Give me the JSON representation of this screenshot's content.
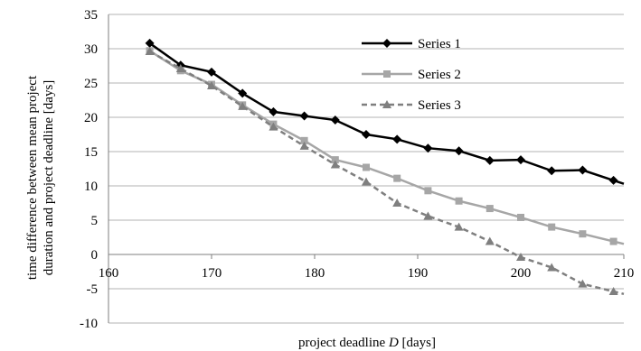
{
  "chart_data": {
    "type": "line",
    "title": "",
    "xlabel_prefix": "project deadline ",
    "xlabel_var": "D",
    "xlabel_suffix": " [days]",
    "ylabel_line1": "time difference between mean project",
    "ylabel_line2": "duration and project deadline [days]",
    "xlim": [
      160,
      210
    ],
    "ylim": [
      -10,
      35
    ],
    "x_ticks": [
      160,
      170,
      180,
      190,
      200,
      210
    ],
    "y_ticks": [
      -10,
      -5,
      0,
      5,
      10,
      15,
      20,
      25,
      30,
      35
    ],
    "grid": "horizontal",
    "legend_position": "top-right",
    "x": [
      164,
      167,
      170,
      173,
      176,
      179,
      182,
      185,
      188,
      191,
      194,
      197,
      200,
      203,
      206,
      209
    ],
    "series": [
      {
        "name": "Series 1",
        "color": "#000000",
        "marker": "diamond",
        "dash": "solid",
        "values": [
          30.8,
          27.6,
          26.6,
          23.5,
          20.8,
          20.2,
          19.6,
          17.5,
          16.8,
          15.5,
          15.1,
          13.7,
          13.8,
          12.2,
          12.3,
          10.8
        ]
      },
      {
        "name": "Series 2",
        "color": "#a6a6a6",
        "marker": "square",
        "dash": "solid",
        "values": [
          29.7,
          26.8,
          24.8,
          21.8,
          19.0,
          16.6,
          13.8,
          12.7,
          11.1,
          9.3,
          7.8,
          6.7,
          5.4,
          4.0,
          3.0,
          1.9
        ]
      },
      {
        "name": "Series 3",
        "color": "#7f7f7f",
        "marker": "triangle",
        "dash": "dashed",
        "values": [
          29.6,
          27.1,
          24.6,
          21.6,
          18.6,
          15.8,
          13.1,
          10.6,
          7.5,
          5.6,
          4.0,
          1.9,
          -0.4,
          -1.9,
          -4.3,
          -5.4
        ]
      }
    ]
  }
}
